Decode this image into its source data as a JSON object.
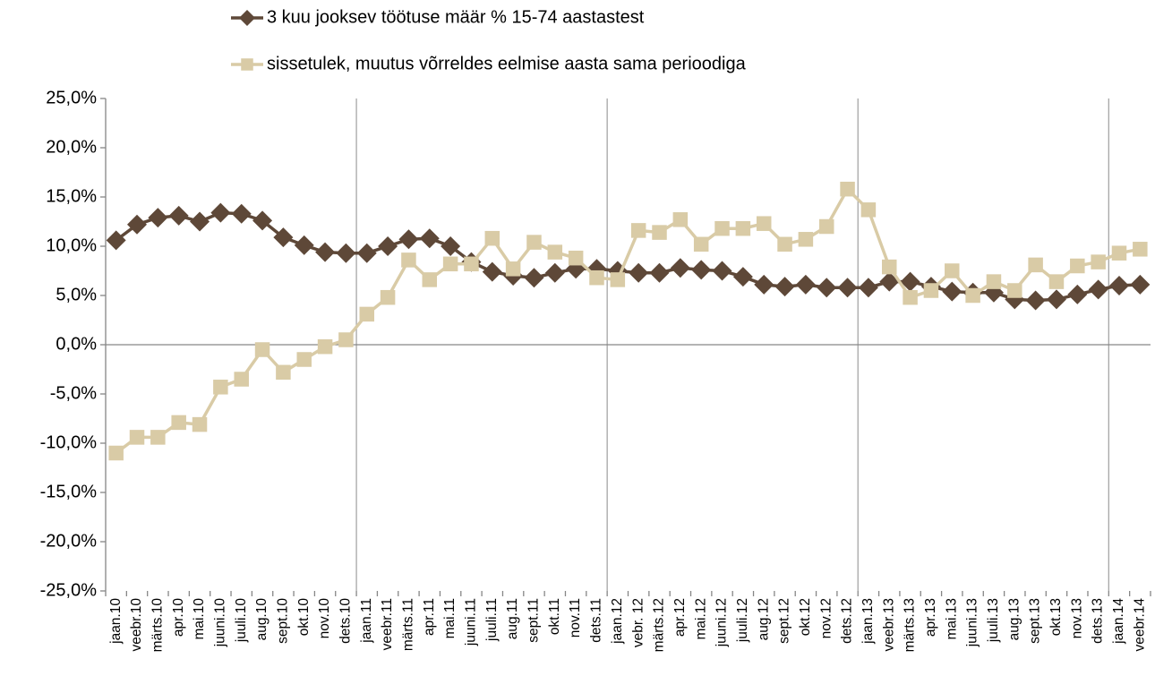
{
  "chart_data": {
    "type": "line",
    "categories": [
      "jaan.10",
      "veebr.10",
      "märts.10",
      "apr.10",
      "mai.10",
      "juuni.10",
      "juuli.10",
      "aug.10",
      "sept.10",
      "okt.10",
      "nov.10",
      "dets.10",
      "jaan.11",
      "veebr.11",
      "märts.11",
      "apr.11",
      "mai.11",
      "juuni.11",
      "juuli.11",
      "aug.11",
      "sept.11",
      "okt.11",
      "nov.11",
      "dets.11",
      "jaan.12",
      "vebr. 12",
      "märts.12",
      "apr.12",
      "mai.12",
      "juuni.12",
      "juuli.12",
      "aug.12",
      "sept.12",
      "okt.12",
      "nov.12",
      "dets.12",
      "jaan.13",
      "veebr.13",
      "märts.13",
      "apr.13",
      "mai.13",
      "juuni.13",
      "juuli.13",
      "aug.13",
      "sept.13",
      "okt.13",
      "nov.13",
      "dets.13",
      "jaan.14",
      "veebr.14"
    ],
    "series": [
      {
        "name": "3 kuu jooksev töötuse määr % 15-74 aastastest",
        "color": "#5e4838",
        "marker": "diamond",
        "values": [
          10.6,
          12.2,
          12.9,
          13.1,
          12.5,
          13.4,
          13.3,
          12.6,
          10.9,
          10.1,
          9.4,
          9.3,
          9.3,
          10.0,
          10.7,
          10.8,
          10.0,
          8.4,
          7.4,
          7.0,
          6.8,
          7.3,
          7.7,
          7.7,
          7.5,
          7.3,
          7.3,
          7.8,
          7.6,
          7.5,
          6.9,
          6.1,
          5.9,
          6.1,
          5.8,
          5.8,
          5.8,
          6.4,
          6.4,
          5.9,
          5.4,
          5.3,
          5.3,
          4.6,
          4.5,
          4.6,
          5.1,
          5.6,
          6.0,
          6.1
        ]
      },
      {
        "name": "sissetulek, muutus võrreldes eelmise aasta sama perioodiga",
        "color": "#d9cba6",
        "marker": "square",
        "values": [
          -11.0,
          -9.4,
          -9.4,
          -7.9,
          -8.1,
          -4.3,
          -3.5,
          -0.5,
          -2.8,
          -1.5,
          -0.2,
          0.5,
          3.1,
          4.8,
          8.6,
          6.6,
          8.2,
          8.2,
          10.8,
          7.7,
          10.4,
          9.4,
          8.8,
          6.8,
          6.6,
          11.6,
          11.4,
          12.7,
          10.2,
          11.8,
          11.8,
          12.3,
          10.2,
          10.7,
          12.0,
          15.8,
          13.7,
          7.9,
          4.8,
          5.5,
          7.5,
          5.0,
          6.4,
          5.5,
          8.1,
          6.4,
          8.0,
          8.4,
          9.3,
          9.7
        ]
      }
    ],
    "ylim": [
      -25,
      25
    ],
    "yticks": [
      {
        "value": -25,
        "label": "-25,0%"
      },
      {
        "value": -20,
        "label": "-20,0%"
      },
      {
        "value": -15,
        "label": "-15,0%"
      },
      {
        "value": -10,
        "label": "-10,0%"
      },
      {
        "value": -5,
        "label": "-5,0%"
      },
      {
        "value": 0,
        "label": "0,0%"
      },
      {
        "value": 5,
        "label": "5,0%"
      },
      {
        "value": 10,
        "label": "10,0%"
      },
      {
        "value": 15,
        "label": "15,0%"
      },
      {
        "value": 20,
        "label": "20,0%"
      },
      {
        "value": 25,
        "label": "25,0%"
      }
    ],
    "legend": "top"
  }
}
